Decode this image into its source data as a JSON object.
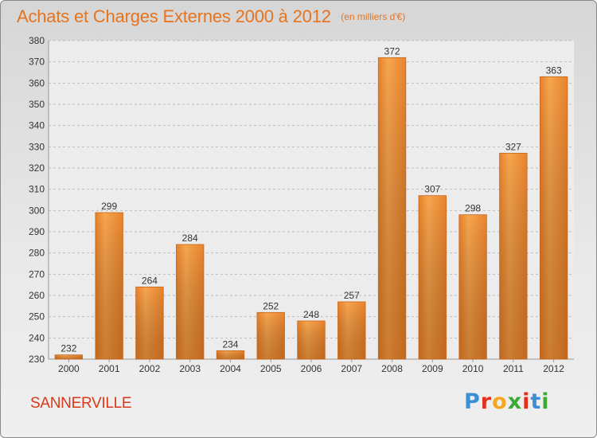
{
  "chart_data": {
    "type": "bar",
    "title": "Achats et Charges Externes 2000 à 2012",
    "unit": "(en milliers d'€)",
    "categories": [
      "2000",
      "2001",
      "2002",
      "2003",
      "2004",
      "2005",
      "2006",
      "2007",
      "2008",
      "2009",
      "2010",
      "2011",
      "2012"
    ],
    "values": [
      232,
      299,
      264,
      284,
      234,
      252,
      248,
      257,
      372,
      307,
      298,
      327,
      363
    ],
    "ylim": [
      230,
      380
    ],
    "yticks": [
      230,
      240,
      250,
      260,
      270,
      280,
      290,
      300,
      310,
      320,
      330,
      340,
      350,
      360,
      370,
      380
    ],
    "grid": true,
    "bar_color": "#f0983f"
  },
  "commune": "SANNERVILLE",
  "logo": {
    "text": "Proxiti",
    "letter_colors": [
      "#3b8fd6",
      "#e2301f",
      "#f5a623",
      "#3aaa35",
      "#e2301f",
      "#3b8fd6",
      "#3aaa35"
    ]
  },
  "colors": {
    "title": "#e8731d",
    "commune": "#d9391b"
  }
}
